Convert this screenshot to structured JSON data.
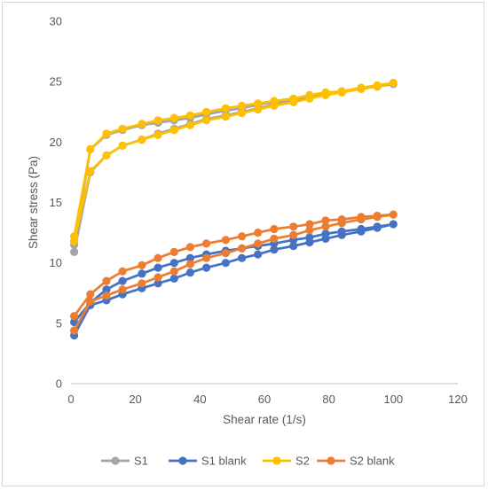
{
  "chart_data": {
    "type": "line",
    "title": "",
    "xlabel": "Shear rate (1/s)",
    "ylabel": "Shear stress (Pa)",
    "xlim": [
      0,
      120
    ],
    "ylim": [
      0,
      30
    ],
    "x_ticks": [
      "0",
      "20",
      "40",
      "60",
      "80",
      "100",
      "120"
    ],
    "y_ticks": [
      "0",
      "5",
      "10",
      "15",
      "20",
      "25",
      "30"
    ],
    "grid": false,
    "legend_position": "bottom",
    "series": [
      {
        "name": "S1",
        "color": "#a5a5a5",
        "x": [
          1,
          6,
          11,
          16,
          22,
          27,
          32,
          37,
          42,
          48,
          53,
          58,
          63,
          69,
          74,
          79,
          84,
          90,
          95,
          100,
          95,
          90,
          84,
          79,
          74,
          69,
          63,
          58,
          53,
          48,
          42,
          37,
          32,
          27,
          22,
          16,
          11,
          6,
          1
        ],
        "y": [
          10.9,
          17.5,
          18.9,
          19.7,
          20.2,
          20.7,
          21.1,
          21.5,
          21.9,
          22.2,
          22.5,
          22.8,
          23.1,
          23.4,
          23.7,
          23.9,
          24.2,
          24.4,
          24.6,
          24.8,
          24.6,
          24.4,
          24.2,
          24.0,
          23.8,
          23.5,
          23.3,
          23.1,
          22.8,
          22.6,
          22.3,
          22.0,
          21.8,
          21.6,
          21.4,
          21.0,
          20.6,
          19.4,
          11.5
        ]
      },
      {
        "name": "S1 blank",
        "color": "#4472c4",
        "x": [
          1,
          6,
          11,
          16,
          22,
          27,
          32,
          37,
          42,
          48,
          53,
          58,
          63,
          69,
          74,
          79,
          84,
          90,
          95,
          100,
          95,
          90,
          84,
          79,
          74,
          69,
          63,
          58,
          53,
          48,
          42,
          37,
          32,
          27,
          22,
          16,
          11,
          6,
          1
        ],
        "y": [
          4.0,
          6.5,
          6.9,
          7.4,
          7.9,
          8.3,
          8.7,
          9.2,
          9.6,
          10.0,
          10.4,
          10.7,
          11.1,
          11.4,
          11.7,
          12.0,
          12.3,
          12.6,
          12.9,
          13.2,
          13.0,
          12.8,
          12.6,
          12.4,
          12.1,
          11.9,
          11.6,
          11.4,
          11.2,
          11.0,
          10.7,
          10.4,
          10.0,
          9.6,
          9.1,
          8.5,
          7.8,
          6.7,
          5.1
        ]
      },
      {
        "name": "S2",
        "color": "#ffc000",
        "x": [
          1,
          6,
          11,
          16,
          22,
          27,
          32,
          37,
          42,
          48,
          53,
          58,
          63,
          69,
          74,
          79,
          84,
          90,
          95,
          100,
          95,
          90,
          84,
          79,
          74,
          69,
          63,
          58,
          53,
          48,
          42,
          37,
          32,
          27,
          22,
          16,
          11,
          6,
          1
        ],
        "y": [
          12.2,
          19.4,
          20.7,
          21.1,
          21.5,
          21.8,
          22.0,
          22.2,
          22.5,
          22.8,
          23.0,
          23.2,
          23.4,
          23.6,
          23.9,
          24.1,
          24.2,
          24.5,
          24.7,
          24.9,
          24.6,
          24.4,
          24.1,
          23.9,
          23.6,
          23.3,
          23.0,
          22.7,
          22.4,
          22.1,
          21.8,
          21.4,
          21.0,
          20.6,
          20.2,
          19.7,
          18.9,
          17.6,
          11.8
        ]
      },
      {
        "name": "S2 blank",
        "color": "#ed7d31",
        "x": [
          1,
          6,
          11,
          16,
          22,
          27,
          32,
          37,
          42,
          48,
          53,
          58,
          63,
          69,
          74,
          79,
          84,
          90,
          95,
          100,
          95,
          90,
          84,
          79,
          74,
          69,
          63,
          58,
          53,
          48,
          42,
          37,
          32,
          27,
          22,
          16,
          11,
          6,
          1
        ],
        "y": [
          5.6,
          7.4,
          8.5,
          9.3,
          9.8,
          10.4,
          10.9,
          11.3,
          11.6,
          11.9,
          12.2,
          12.5,
          12.8,
          13.0,
          13.2,
          13.5,
          13.6,
          13.8,
          13.9,
          14.0,
          13.8,
          13.6,
          13.3,
          13.0,
          12.7,
          12.3,
          12.0,
          11.6,
          11.2,
          10.8,
          10.4,
          9.9,
          9.3,
          8.8,
          8.3,
          7.8,
          7.3,
          6.8,
          4.4
        ]
      }
    ]
  }
}
